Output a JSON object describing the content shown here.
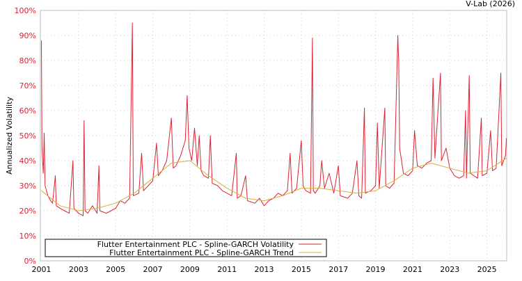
{
  "credit": "V-Lab (2026)",
  "chart_data": {
    "type": "line",
    "title": "",
    "xlabel": "",
    "ylabel": "Annualized Volatility",
    "xlim": [
      2001,
      2026.1
    ],
    "ylim": [
      0,
      100
    ],
    "grid": true,
    "legend_placement": "bottom-left",
    "x_ticks": [
      "2001",
      "2003",
      "2005",
      "2007",
      "2009",
      "2011",
      "2013",
      "2015",
      "2017",
      "2019",
      "2021",
      "2023",
      "2025"
    ],
    "y_ticks": [
      "0%",
      "10%",
      "20%",
      "30%",
      "40%",
      "50%",
      "60%",
      "70%",
      "80%",
      "90%",
      "100%"
    ],
    "series": [
      {
        "name": "Flutter Entertainment PLC - Spline-GARCH Volatility",
        "color": "#dd2233",
        "points": [
          [
            2001.0,
            88
          ],
          [
            2001.03,
            45
          ],
          [
            2001.1,
            35
          ],
          [
            2001.15,
            51
          ],
          [
            2001.2,
            30
          ],
          [
            2001.35,
            26
          ],
          [
            2001.5,
            24
          ],
          [
            2001.6,
            23
          ],
          [
            2001.75,
            34
          ],
          [
            2001.8,
            22
          ],
          [
            2002.0,
            21
          ],
          [
            2002.25,
            20
          ],
          [
            2002.5,
            19
          ],
          [
            2002.7,
            40
          ],
          [
            2002.75,
            21
          ],
          [
            2003.0,
            19
          ],
          [
            2003.25,
            18
          ],
          [
            2003.3,
            56
          ],
          [
            2003.35,
            20
          ],
          [
            2003.5,
            19
          ],
          [
            2003.75,
            22
          ],
          [
            2004.0,
            19
          ],
          [
            2004.1,
            38
          ],
          [
            2004.15,
            20
          ],
          [
            2004.5,
            19
          ],
          [
            2004.75,
            20
          ],
          [
            2005.0,
            21
          ],
          [
            2005.25,
            24
          ],
          [
            2005.5,
            23
          ],
          [
            2005.75,
            25
          ],
          [
            2005.9,
            95
          ],
          [
            2005.95,
            26
          ],
          [
            2006.25,
            27
          ],
          [
            2006.4,
            43
          ],
          [
            2006.5,
            28
          ],
          [
            2006.75,
            30
          ],
          [
            2007.0,
            32
          ],
          [
            2007.2,
            47
          ],
          [
            2007.3,
            34
          ],
          [
            2007.5,
            36
          ],
          [
            2007.75,
            40
          ],
          [
            2008.0,
            57
          ],
          [
            2008.1,
            37
          ],
          [
            2008.25,
            38
          ],
          [
            2008.5,
            42
          ],
          [
            2008.75,
            48
          ],
          [
            2008.85,
            66
          ],
          [
            2008.95,
            45
          ],
          [
            2009.1,
            40
          ],
          [
            2009.25,
            53
          ],
          [
            2009.4,
            38
          ],
          [
            2009.5,
            50
          ],
          [
            2009.6,
            36
          ],
          [
            2009.75,
            34
          ],
          [
            2010.0,
            33
          ],
          [
            2010.1,
            50
          ],
          [
            2010.2,
            31
          ],
          [
            2010.5,
            30
          ],
          [
            2010.75,
            28
          ],
          [
            2011.0,
            27
          ],
          [
            2011.25,
            26
          ],
          [
            2011.5,
            43
          ],
          [
            2011.55,
            25
          ],
          [
            2011.75,
            26
          ],
          [
            2012.0,
            34
          ],
          [
            2012.1,
            24
          ],
          [
            2012.5,
            23
          ],
          [
            2012.75,
            25
          ],
          [
            2013.0,
            22
          ],
          [
            2013.25,
            24
          ],
          [
            2013.5,
            25
          ],
          [
            2013.75,
            27
          ],
          [
            2014.0,
            26
          ],
          [
            2014.25,
            28
          ],
          [
            2014.4,
            43
          ],
          [
            2014.5,
            27
          ],
          [
            2014.75,
            29
          ],
          [
            2015.0,
            48
          ],
          [
            2015.1,
            30
          ],
          [
            2015.25,
            28
          ],
          [
            2015.5,
            27
          ],
          [
            2015.6,
            89
          ],
          [
            2015.65,
            28
          ],
          [
            2015.75,
            27
          ],
          [
            2016.0,
            30
          ],
          [
            2016.1,
            40
          ],
          [
            2016.25,
            29
          ],
          [
            2016.5,
            35
          ],
          [
            2016.75,
            27
          ],
          [
            2017.0,
            38
          ],
          [
            2017.1,
            26
          ],
          [
            2017.5,
            25
          ],
          [
            2017.75,
            27
          ],
          [
            2018.0,
            40
          ],
          [
            2018.1,
            26
          ],
          [
            2018.25,
            25
          ],
          [
            2018.4,
            61
          ],
          [
            2018.45,
            27
          ],
          [
            2018.75,
            28
          ],
          [
            2019.0,
            30
          ],
          [
            2019.1,
            55
          ],
          [
            2019.2,
            29
          ],
          [
            2019.5,
            61
          ],
          [
            2019.55,
            30
          ],
          [
            2019.75,
            29
          ],
          [
            2020.0,
            31
          ],
          [
            2020.2,
            90
          ],
          [
            2020.22,
            85
          ],
          [
            2020.25,
            80
          ],
          [
            2020.3,
            45
          ],
          [
            2020.5,
            35
          ],
          [
            2020.75,
            34
          ],
          [
            2021.0,
            36
          ],
          [
            2021.1,
            52
          ],
          [
            2021.25,
            38
          ],
          [
            2021.5,
            37
          ],
          [
            2021.75,
            39
          ],
          [
            2022.0,
            40
          ],
          [
            2022.1,
            73
          ],
          [
            2022.2,
            41
          ],
          [
            2022.5,
            75
          ],
          [
            2022.55,
            40
          ],
          [
            2022.8,
            45
          ],
          [
            2023.0,
            37
          ],
          [
            2023.25,
            34
          ],
          [
            2023.5,
            33
          ],
          [
            2023.75,
            34
          ],
          [
            2023.85,
            60
          ],
          [
            2023.9,
            33
          ],
          [
            2024.05,
            74
          ],
          [
            2024.1,
            35
          ],
          [
            2024.5,
            33
          ],
          [
            2024.7,
            57
          ],
          [
            2024.75,
            34
          ],
          [
            2025.0,
            35
          ],
          [
            2025.2,
            52
          ],
          [
            2025.3,
            36
          ],
          [
            2025.5,
            37
          ],
          [
            2025.75,
            75
          ],
          [
            2025.8,
            38
          ],
          [
            2026.0,
            42
          ],
          [
            2026.05,
            49
          ]
        ]
      },
      {
        "name": "Flutter Entertainment PLC - Spline-GARCH Trend",
        "color": "#d4b040",
        "points": [
          [
            2001,
            28
          ],
          [
            2002,
            22
          ],
          [
            2003,
            20
          ],
          [
            2004,
            21
          ],
          [
            2005,
            23
          ],
          [
            2006,
            27
          ],
          [
            2007,
            33
          ],
          [
            2008,
            39
          ],
          [
            2009,
            40
          ],
          [
            2010,
            34
          ],
          [
            2011,
            29
          ],
          [
            2012,
            25
          ],
          [
            2013,
            24
          ],
          [
            2014,
            26
          ],
          [
            2015,
            29
          ],
          [
            2016,
            29
          ],
          [
            2017,
            28
          ],
          [
            2018,
            27
          ],
          [
            2019,
            28
          ],
          [
            2020,
            32
          ],
          [
            2021,
            37
          ],
          [
            2022,
            39
          ],
          [
            2023,
            37
          ],
          [
            2024,
            35
          ],
          [
            2025,
            36
          ],
          [
            2026.05,
            41
          ]
        ]
      }
    ]
  }
}
